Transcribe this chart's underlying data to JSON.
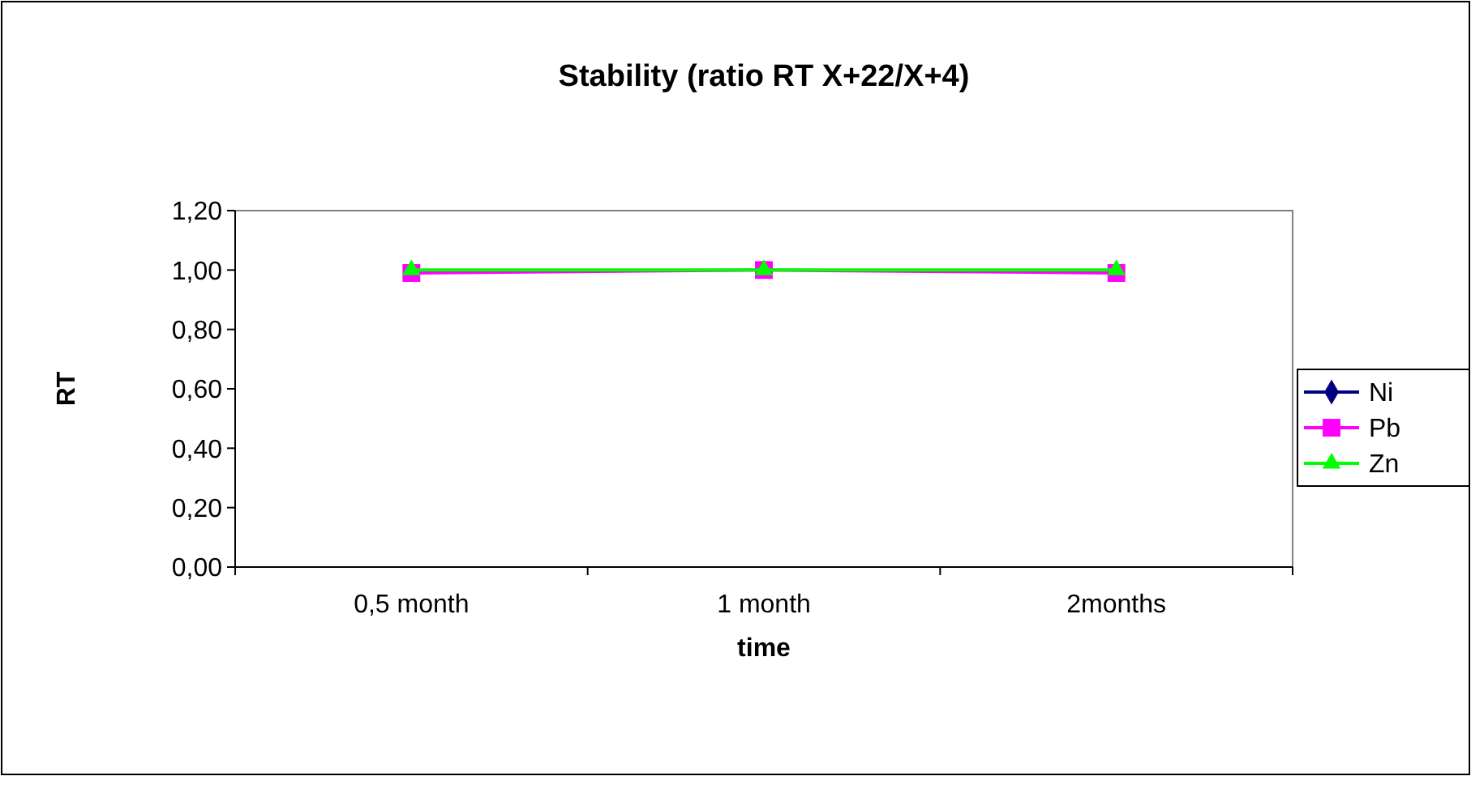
{
  "chart_data": {
    "type": "line",
    "title": "Stability (ratio RT X+22/X+4)",
    "xlabel": "time",
    "ylabel": "RT",
    "categories": [
      "0,5 month",
      "1 month",
      "2months"
    ],
    "series": [
      {
        "name": "Ni",
        "color": "#000080",
        "marker": "diamond",
        "values": [
          null,
          null,
          null
        ]
      },
      {
        "name": "Pb",
        "color": "#ff00ff",
        "marker": "square",
        "values": [
          0.99,
          1.0,
          0.99
        ]
      },
      {
        "name": "Zn",
        "color": "#00ff00",
        "marker": "triangle",
        "values": [
          1.0,
          1.0,
          1.0
        ]
      }
    ],
    "ylim": [
      0,
      1.2
    ],
    "yticks": [
      {
        "value": 0,
        "label": "0,00"
      },
      {
        "value": 0.2,
        "label": "0,20"
      },
      {
        "value": 0.4,
        "label": "0,40"
      },
      {
        "value": 0.6,
        "label": "0,60"
      },
      {
        "value": 0.8,
        "label": "0,80"
      },
      {
        "value": 1.0,
        "label": "1,00"
      },
      {
        "value": 1.2,
        "label": "1,20"
      }
    ],
    "grid": false,
    "legend": "right",
    "line_style": "solid"
  }
}
